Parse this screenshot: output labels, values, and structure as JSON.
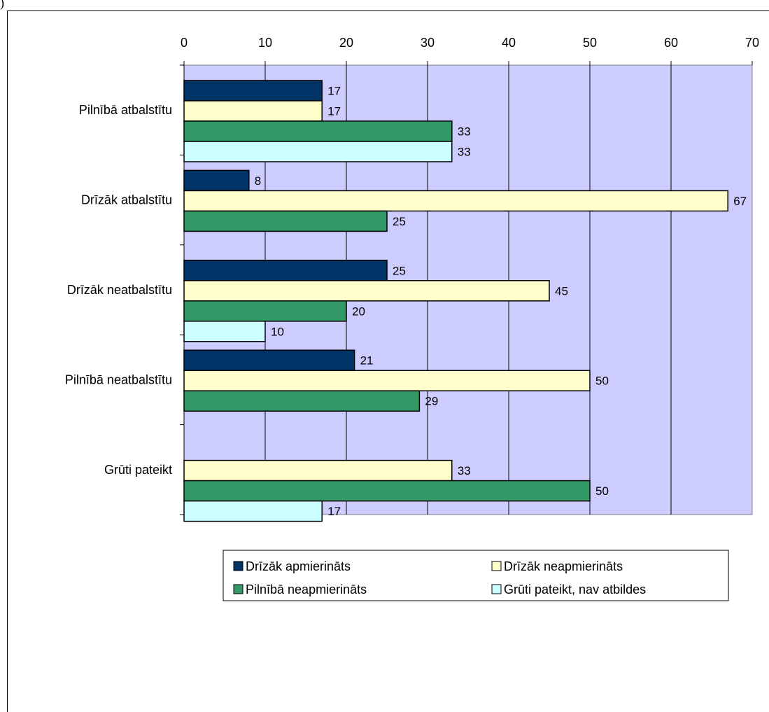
{
  "corner_mark": ")",
  "chart_data": {
    "type": "bar",
    "orientation": "horizontal",
    "categories": [
      "Pilnībā atbalstītu",
      "Drīzāk atbalstītu",
      "Drīzāk neatbalstītu",
      "Pilnībā neatbalstītu",
      "Grūti pateikt"
    ],
    "series": [
      {
        "name": "Drīzāk apmierināts",
        "color": "#003366",
        "values": [
          17,
          8,
          25,
          21,
          null
        ]
      },
      {
        "name": "Drīzāk neapmierināts",
        "color": "#FFFFCC",
        "values": [
          17,
          67,
          45,
          50,
          33
        ]
      },
      {
        "name": "Pilnībā neapmierināts",
        "color": "#339966",
        "values": [
          33,
          25,
          20,
          29,
          50
        ]
      },
      {
        "name": "Grūti pateikt, nav atbildes",
        "color": "#CCFFFF",
        "values": [
          33,
          null,
          10,
          null,
          17
        ]
      }
    ],
    "xlim": [
      0,
      70
    ],
    "xticks": [
      "0",
      "10",
      "20",
      "30",
      "40",
      "50",
      "60",
      "70"
    ],
    "plot_background": "#CCCCFF",
    "grid": true,
    "legend_position": "bottom",
    "data_labels": true
  }
}
